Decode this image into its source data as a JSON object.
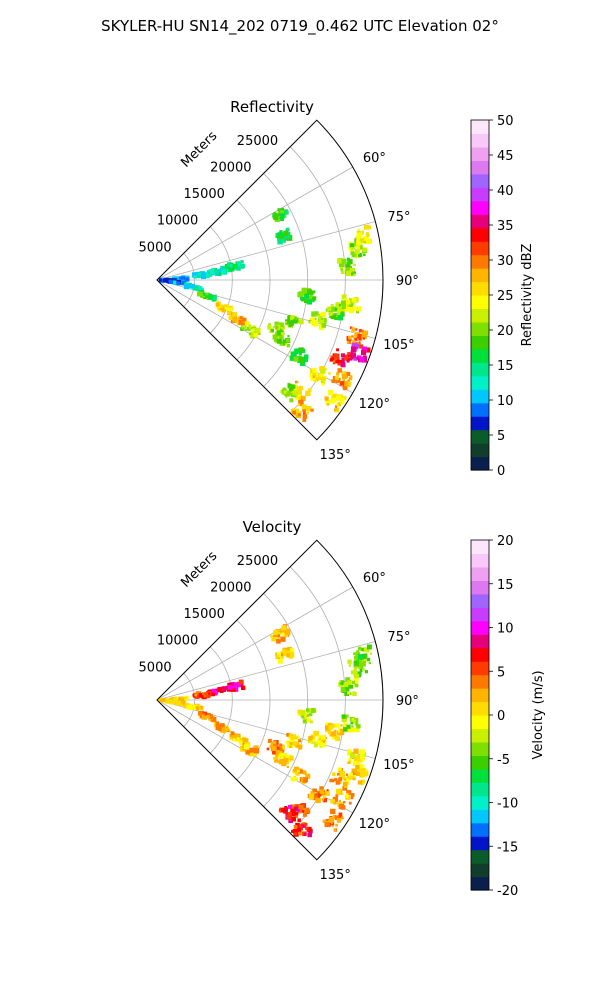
{
  "figure_title": "SKYLER-HU  SN14_202  0719_0.462 UTC Elevation 02°",
  "chart_data": [
    {
      "type": "polar-sector-radar",
      "title": "Reflectivity",
      "radial_label": "Meters",
      "radial_ticks": [
        5000,
        10000,
        15000,
        20000,
        25000
      ],
      "rmax": 30000,
      "angle_ticks": [
        "60°",
        "75°",
        "90°",
        "105°",
        "120°",
        "135°"
      ],
      "sector_degrees": [
        45,
        135
      ],
      "grid": true,
      "colorbar": {
        "label": "Reflectivity dBZ",
        "range": [
          0,
          50
        ],
        "ticks": [
          0,
          5,
          10,
          15,
          20,
          25,
          30,
          35,
          40,
          45,
          50
        ],
        "colors": [
          "#0b1f4e",
          "#113d2c",
          "#0a5c2a",
          "#0015c8",
          "#0070ff",
          "#00c8ff",
          "#00f0c8",
          "#00e68c",
          "#00e03c",
          "#3ccf00",
          "#7de000",
          "#c8f000",
          "#ffff00",
          "#ffdc00",
          "#ffb400",
          "#ff7800",
          "#ff3c00",
          "#ff0000",
          "#e6007a",
          "#ff00ff",
          "#c83cff",
          "#a064ff",
          "#dc78f0",
          "#f0a0f0",
          "#f8c8f8",
          "#fbe6fb"
        ]
      },
      "echoes": [
        {
          "r": 18500,
          "az": 62,
          "v": 18
        },
        {
          "r": 18000,
          "az": 71,
          "v": 16
        },
        {
          "r": 10500,
          "az": 80,
          "v": 15
        },
        {
          "r": 8000,
          "az": 82,
          "v": 14
        },
        {
          "r": 6000,
          "az": 84,
          "v": 12
        },
        {
          "r": 3000,
          "az": 88,
          "v": 9
        },
        {
          "r": 1500,
          "az": 92,
          "v": 7
        },
        {
          "r": 2500,
          "az": 97,
          "v": 10
        },
        {
          "r": 5000,
          "az": 101,
          "v": 12
        },
        {
          "r": 7000,
          "az": 108,
          "v": 18
        },
        {
          "r": 9500,
          "az": 113,
          "v": 26
        },
        {
          "r": 12000,
          "az": 116,
          "v": 28
        },
        {
          "r": 14000,
          "az": 118,
          "v": 22
        },
        {
          "r": 17000,
          "az": 112,
          "v": 20
        },
        {
          "r": 19000,
          "az": 107,
          "v": 20
        },
        {
          "r": 22000,
          "az": 104,
          "v": 22
        },
        {
          "r": 24000,
          "az": 100,
          "v": 20
        },
        {
          "r": 26000,
          "az": 97,
          "v": 22
        },
        {
          "r": 27000,
          "az": 81,
          "v": 22
        },
        {
          "r": 28000,
          "az": 78,
          "v": 24
        },
        {
          "r": 25500,
          "az": 86,
          "v": 20
        },
        {
          "r": 27500,
          "az": 106,
          "v": 30
        },
        {
          "r": 28500,
          "az": 110,
          "v": 36
        },
        {
          "r": 26500,
          "az": 113,
          "v": 32
        },
        {
          "r": 28000,
          "az": 118,
          "v": 28
        },
        {
          "r": 28500,
          "az": 124,
          "v": 26
        },
        {
          "r": 25000,
          "az": 120,
          "v": 24
        },
        {
          "r": 24000,
          "az": 128,
          "v": 26
        },
        {
          "r": 23000,
          "az": 130,
          "v": 20
        },
        {
          "r": 26000,
          "az": 132,
          "v": 28
        },
        {
          "r": 21500,
          "az": 118,
          "v": 18
        },
        {
          "r": 18500,
          "az": 115,
          "v": 20
        },
        {
          "r": 20000,
          "az": 96,
          "v": 18
        }
      ]
    },
    {
      "type": "polar-sector-radar",
      "title": "Velocity",
      "radial_label": "Meters",
      "radial_ticks": [
        5000,
        10000,
        15000,
        20000,
        25000
      ],
      "rmax": 30000,
      "angle_ticks": [
        "60°",
        "75°",
        "90°",
        "105°",
        "120°",
        "135°"
      ],
      "sector_degrees": [
        45,
        135
      ],
      "grid": true,
      "colorbar": {
        "label": "Velocity (m/s)",
        "range": [
          -20,
          20
        ],
        "ticks": [
          -20,
          -15,
          -10,
          -5,
          0,
          5,
          10,
          15,
          20
        ],
        "colors": [
          "#0b1f4e",
          "#113d2c",
          "#0a5c2a",
          "#0015c8",
          "#0070ff",
          "#00c8ff",
          "#00f0c8",
          "#00e68c",
          "#00e03c",
          "#3ccf00",
          "#7de000",
          "#c8f000",
          "#ffff00",
          "#ffdc00",
          "#ffb400",
          "#ff7800",
          "#ff3c00",
          "#ff0000",
          "#e6007a",
          "#ff00ff",
          "#c83cff",
          "#a064ff",
          "#dc78f0",
          "#f0a0f0",
          "#f8c8f8",
          "#fbe6fb"
        ]
      },
      "echoes": [
        {
          "r": 18500,
          "az": 62,
          "v": 2
        },
        {
          "r": 18000,
          "az": 71,
          "v": 1
        },
        {
          "r": 10500,
          "az": 80,
          "v": 8
        },
        {
          "r": 8000,
          "az": 82,
          "v": 9
        },
        {
          "r": 6000,
          "az": 84,
          "v": 5
        },
        {
          "r": 3000,
          "az": 88,
          "v": 1
        },
        {
          "r": 1500,
          "az": 92,
          "v": 0
        },
        {
          "r": 2500,
          "az": 97,
          "v": 2
        },
        {
          "r": 5000,
          "az": 101,
          "v": 1
        },
        {
          "r": 7000,
          "az": 108,
          "v": 4
        },
        {
          "r": 9500,
          "az": 113,
          "v": 2
        },
        {
          "r": 12000,
          "az": 116,
          "v": 1
        },
        {
          "r": 14000,
          "az": 118,
          "v": 2
        },
        {
          "r": 17000,
          "az": 112,
          "v": 3
        },
        {
          "r": 19000,
          "az": 107,
          "v": 1
        },
        {
          "r": 22000,
          "az": 104,
          "v": 0
        },
        {
          "r": 24000,
          "az": 100,
          "v": 1
        },
        {
          "r": 26000,
          "az": 97,
          "v": -3
        },
        {
          "r": 27000,
          "az": 81,
          "v": -4
        },
        {
          "r": 28000,
          "az": 78,
          "v": -4
        },
        {
          "r": 25500,
          "az": 86,
          "v": -3
        },
        {
          "r": 27500,
          "az": 106,
          "v": 0
        },
        {
          "r": 28500,
          "az": 110,
          "v": 1
        },
        {
          "r": 26500,
          "az": 113,
          "v": 2
        },
        {
          "r": 28000,
          "az": 118,
          "v": 2
        },
        {
          "r": 28500,
          "az": 124,
          "v": 4
        },
        {
          "r": 25000,
          "az": 120,
          "v": 3
        },
        {
          "r": 24000,
          "az": 128,
          "v": 5
        },
        {
          "r": 23000,
          "az": 130,
          "v": 8
        },
        {
          "r": 26000,
          "az": 132,
          "v": 6
        },
        {
          "r": 21500,
          "az": 118,
          "v": 2
        },
        {
          "r": 18500,
          "az": 115,
          "v": 1
        },
        {
          "r": 20000,
          "az": 96,
          "v": -2
        }
      ]
    }
  ]
}
